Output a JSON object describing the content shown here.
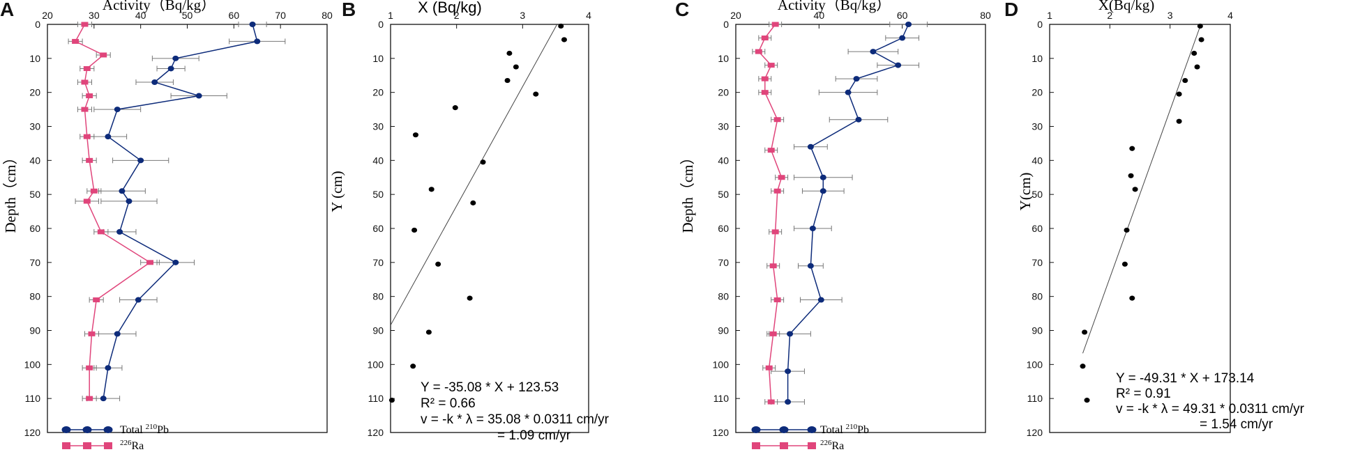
{
  "chart_data": [
    {
      "panel": "A",
      "type": "line",
      "xlabel": "Activity（Bq/kg）",
      "ylabel": "Depth（cm）",
      "xlim": [
        20,
        80
      ],
      "ylim": [
        0,
        120
      ],
      "xticks": [
        20,
        30,
        40,
        50,
        60,
        70,
        80
      ],
      "yticks": [
        0,
        10,
        20,
        30,
        40,
        50,
        60,
        70,
        80,
        90,
        100,
        110,
        120
      ],
      "legend_position": "bottom-left",
      "series": [
        {
          "name": "Total",
          "name_superscript": "210",
          "name_suffix": "Pb",
          "color": "#0d2b7a",
          "marker": "circle",
          "depth": [
            0,
            5,
            10,
            13,
            17,
            21,
            25,
            33,
            40,
            49,
            52,
            61,
            70,
            81,
            91,
            101,
            110
          ],
          "values": [
            64,
            65,
            47.5,
            46.5,
            43,
            52.5,
            35,
            33,
            40,
            36,
            37.5,
            35.5,
            47.5,
            39.5,
            35,
            33,
            32
          ],
          "err": [
            3,
            6,
            5,
            3,
            4,
            6,
            5,
            4,
            6,
            5,
            6,
            3.5,
            4,
            4,
            4,
            3,
            3.5
          ]
        },
        {
          "name": "",
          "name_superscript": "226",
          "name_suffix": "Ra",
          "color": "#e0457b",
          "marker": "square",
          "depth": [
            0,
            5,
            9,
            13,
            17,
            21,
            25,
            33,
            40,
            49,
            52,
            61,
            70,
            81,
            91,
            101,
            110
          ],
          "values": [
            28,
            26,
            32,
            28.5,
            28,
            29,
            28,
            28.5,
            29,
            30,
            28.5,
            31.5,
            42,
            30.5,
            29.5,
            29,
            29
          ],
          "err": [
            1.5,
            1.5,
            1.5,
            1.5,
            1.5,
            1.5,
            1.5,
            1.5,
            1.5,
            1.5,
            2.5,
            1.5,
            2,
            1.5,
            1.5,
            1.5,
            1.5
          ]
        }
      ]
    },
    {
      "panel": "B",
      "type": "scatter",
      "xlabel": "X (Bq/kg)",
      "ylabel": "Y (cm)",
      "xlim": [
        1,
        4
      ],
      "ylim": [
        0,
        120
      ],
      "xticks": [
        1,
        2,
        3,
        4
      ],
      "yticks": [
        0,
        10,
        20,
        30,
        40,
        50,
        60,
        70,
        80,
        90,
        100,
        110,
        120
      ],
      "x": [
        3.58,
        3.63,
        2.8,
        2.9,
        2.77,
        3.2,
        1.98,
        1.38,
        2.4,
        1.62,
        2.25,
        1.36,
        1.72,
        2.2,
        1.58,
        1.34,
        1.02
      ],
      "y": [
        0.5,
        4.5,
        8.5,
        12.5,
        16.5,
        20.5,
        24.5,
        32.5,
        40.5,
        48.5,
        52.5,
        60.5,
        70.5,
        80.5,
        90.5,
        100.5,
        110.5
      ],
      "fit": {
        "slope": -35.08,
        "intercept": 123.53
      },
      "annotations": [
        "Y = -35.08 * X + 123.53",
        "R² = 0.66",
        "v = -k * λ = 35.08 * 0.0311 cm/yr",
        "= 1.09 cm/yr"
      ]
    },
    {
      "panel": "C",
      "type": "line",
      "xlabel": "Activity（Bq/kg）",
      "ylabel": "Depth（cm）",
      "xlim": [
        20,
        80
      ],
      "ylim": [
        0,
        120
      ],
      "xticks": [
        20,
        40,
        60,
        80
      ],
      "yticks": [
        0,
        10,
        20,
        30,
        40,
        50,
        60,
        70,
        80,
        90,
        100,
        110,
        120
      ],
      "legend_position": "bottom-left",
      "series": [
        {
          "name": "Total",
          "name_superscript": "210",
          "name_suffix": "Pb",
          "color": "#0d2b7a",
          "marker": "circle",
          "depth": [
            0,
            4,
            8,
            12,
            16,
            20,
            28,
            36,
            45,
            49,
            60,
            71,
            81,
            91,
            102,
            111
          ],
          "values": [
            61.5,
            60,
            53,
            59,
            49,
            47,
            49.5,
            38,
            41,
            41,
            38.5,
            38,
            40.5,
            33,
            32.5,
            32.5
          ],
          "err": [
            4.5,
            4,
            6,
            5,
            5,
            7,
            7,
            4,
            7,
            5,
            4.5,
            3,
            5,
            5,
            4,
            4
          ]
        },
        {
          "name": "",
          "name_superscript": "226",
          "name_suffix": "Ra",
          "color": "#e0457b",
          "marker": "square",
          "depth": [
            0,
            4,
            8,
            12,
            16,
            20,
            28,
            37,
            45,
            49,
            61,
            71,
            81,
            91,
            101,
            111
          ],
          "values": [
            29.5,
            27,
            25.5,
            28.5,
            27,
            27,
            30,
            28.5,
            31,
            30,
            29.5,
            29,
            30,
            29,
            28,
            28.5
          ],
          "err": [
            1.5,
            1.5,
            1.5,
            1.5,
            1.5,
            1.5,
            1.5,
            1.5,
            1.5,
            1.5,
            1.5,
            1.5,
            1.5,
            1.5,
            1.5,
            1.5
          ]
        }
      ]
    },
    {
      "panel": "D",
      "type": "scatter",
      "xlabel": "X(Bq/kg)",
      "ylabel": "Y(cm)",
      "xlim": [
        1,
        4
      ],
      "ylim": [
        0,
        120
      ],
      "xticks": [
        1,
        2,
        3,
        4
      ],
      "yticks": [
        0,
        10,
        20,
        30,
        40,
        50,
        60,
        70,
        80,
        90,
        100,
        110,
        120
      ],
      "x": [
        3.5,
        3.52,
        3.4,
        3.45,
        3.25,
        3.15,
        3.15,
        2.37,
        2.35,
        2.42,
        2.28,
        2.25,
        2.37,
        1.58,
        1.55,
        1.62
      ],
      "y": [
        0.5,
        4.5,
        8.5,
        12.5,
        16.5,
        20.5,
        28.5,
        36.5,
        44.5,
        48.5,
        60.5,
        70.5,
        80.5,
        90.5,
        100.5,
        110.5
      ],
      "fit": {
        "slope": -49.31,
        "intercept": 173.14
      },
      "annotations": [
        "Y = -49.31 * X + 173.14",
        "R² = 0.91",
        "v = -k * λ = 49.31 * 0.0311 cm/yr",
        "= 1.54 cm/yr"
      ]
    }
  ]
}
